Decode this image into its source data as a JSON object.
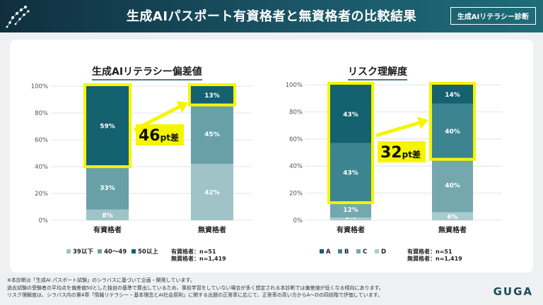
{
  "header": {
    "title": "生成AIパスポート有資格者と無資格者の比較結果",
    "tag": "生成AIリテラシー診断"
  },
  "chart_data": [
    {
      "type": "bar",
      "stacked": true,
      "title": "生成AIリテラシー偏差値",
      "categories": [
        "有資格者",
        "無資格者"
      ],
      "ylim": [
        0,
        100
      ],
      "yticks": [
        "0%",
        "20%",
        "40%",
        "60%",
        "80%",
        "100%"
      ],
      "series": [
        {
          "name": "39以下",
          "values": [
            8,
            42
          ],
          "labels": [
            "8%",
            "42%"
          ],
          "color": "#9fc3c7"
        },
        {
          "name": "40～49",
          "values": [
            33,
            45
          ],
          "labels": [
            "33%",
            "45%"
          ],
          "color": "#69a0a8"
        },
        {
          "name": "50以上",
          "values": [
            59,
            13
          ],
          "labels": [
            "59%",
            "13%"
          ],
          "color": "#14616f"
        }
      ],
      "annotation": {
        "big": "46",
        "small": "pt差"
      },
      "legend_placement": "bottom",
      "n_notes": [
        "有資格者：n=51",
        "無資格者：n=1,419"
      ]
    },
    {
      "type": "bar",
      "stacked": true,
      "title": "リスク理解度",
      "categories": [
        "有資格者",
        "無資格者"
      ],
      "ylim": [
        0,
        100
      ],
      "yticks": [
        "0%",
        "20%",
        "40%",
        "60%",
        "80%",
        "100%"
      ],
      "series": [
        {
          "name": "D",
          "values": [
            2,
            6
          ],
          "labels": [
            "2%",
            "6%"
          ],
          "color": "#a9cbce"
        },
        {
          "name": "C",
          "values": [
            12,
            40
          ],
          "labels": [
            "12%",
            "40%"
          ],
          "color": "#74a7ae"
        },
        {
          "name": "B",
          "values": [
            43,
            40
          ],
          "labels": [
            "43%",
            "40%"
          ],
          "color": "#3c8590"
        },
        {
          "name": "A",
          "values": [
            43,
            14
          ],
          "labels": [
            "43%",
            "14%"
          ],
          "color": "#14616f"
        }
      ],
      "legend_order": [
        "A",
        "B",
        "C",
        "D"
      ],
      "annotation": {
        "big": "32",
        "small": "pt差"
      },
      "legend_placement": "bottom",
      "n_notes": [
        "有資格者：n=51",
        "無資格者：n=1,419"
      ]
    }
  ],
  "footnotes": [
    "※本診断は「生成AI パスポート試験」のシラバスに基づいて企画・開発しています。",
    "過去試験の受験者の平均点を偏差値50とした独自の基準で算出しているため、事前学習をしていない場合が多く想定される本診断では偏差値が低くなる傾向にあります。",
    "リスク理解度は、シラバス内の第4章「情報リテラシー・基本理念とAI社会原則」に関する出題の正答率に応じて、正答率の高い方からA～Dの四段階で評価しています。"
  ],
  "brand": "GUGA",
  "colors": {
    "highlight": "#f5f500",
    "header_dark": "#0f2f3d"
  }
}
